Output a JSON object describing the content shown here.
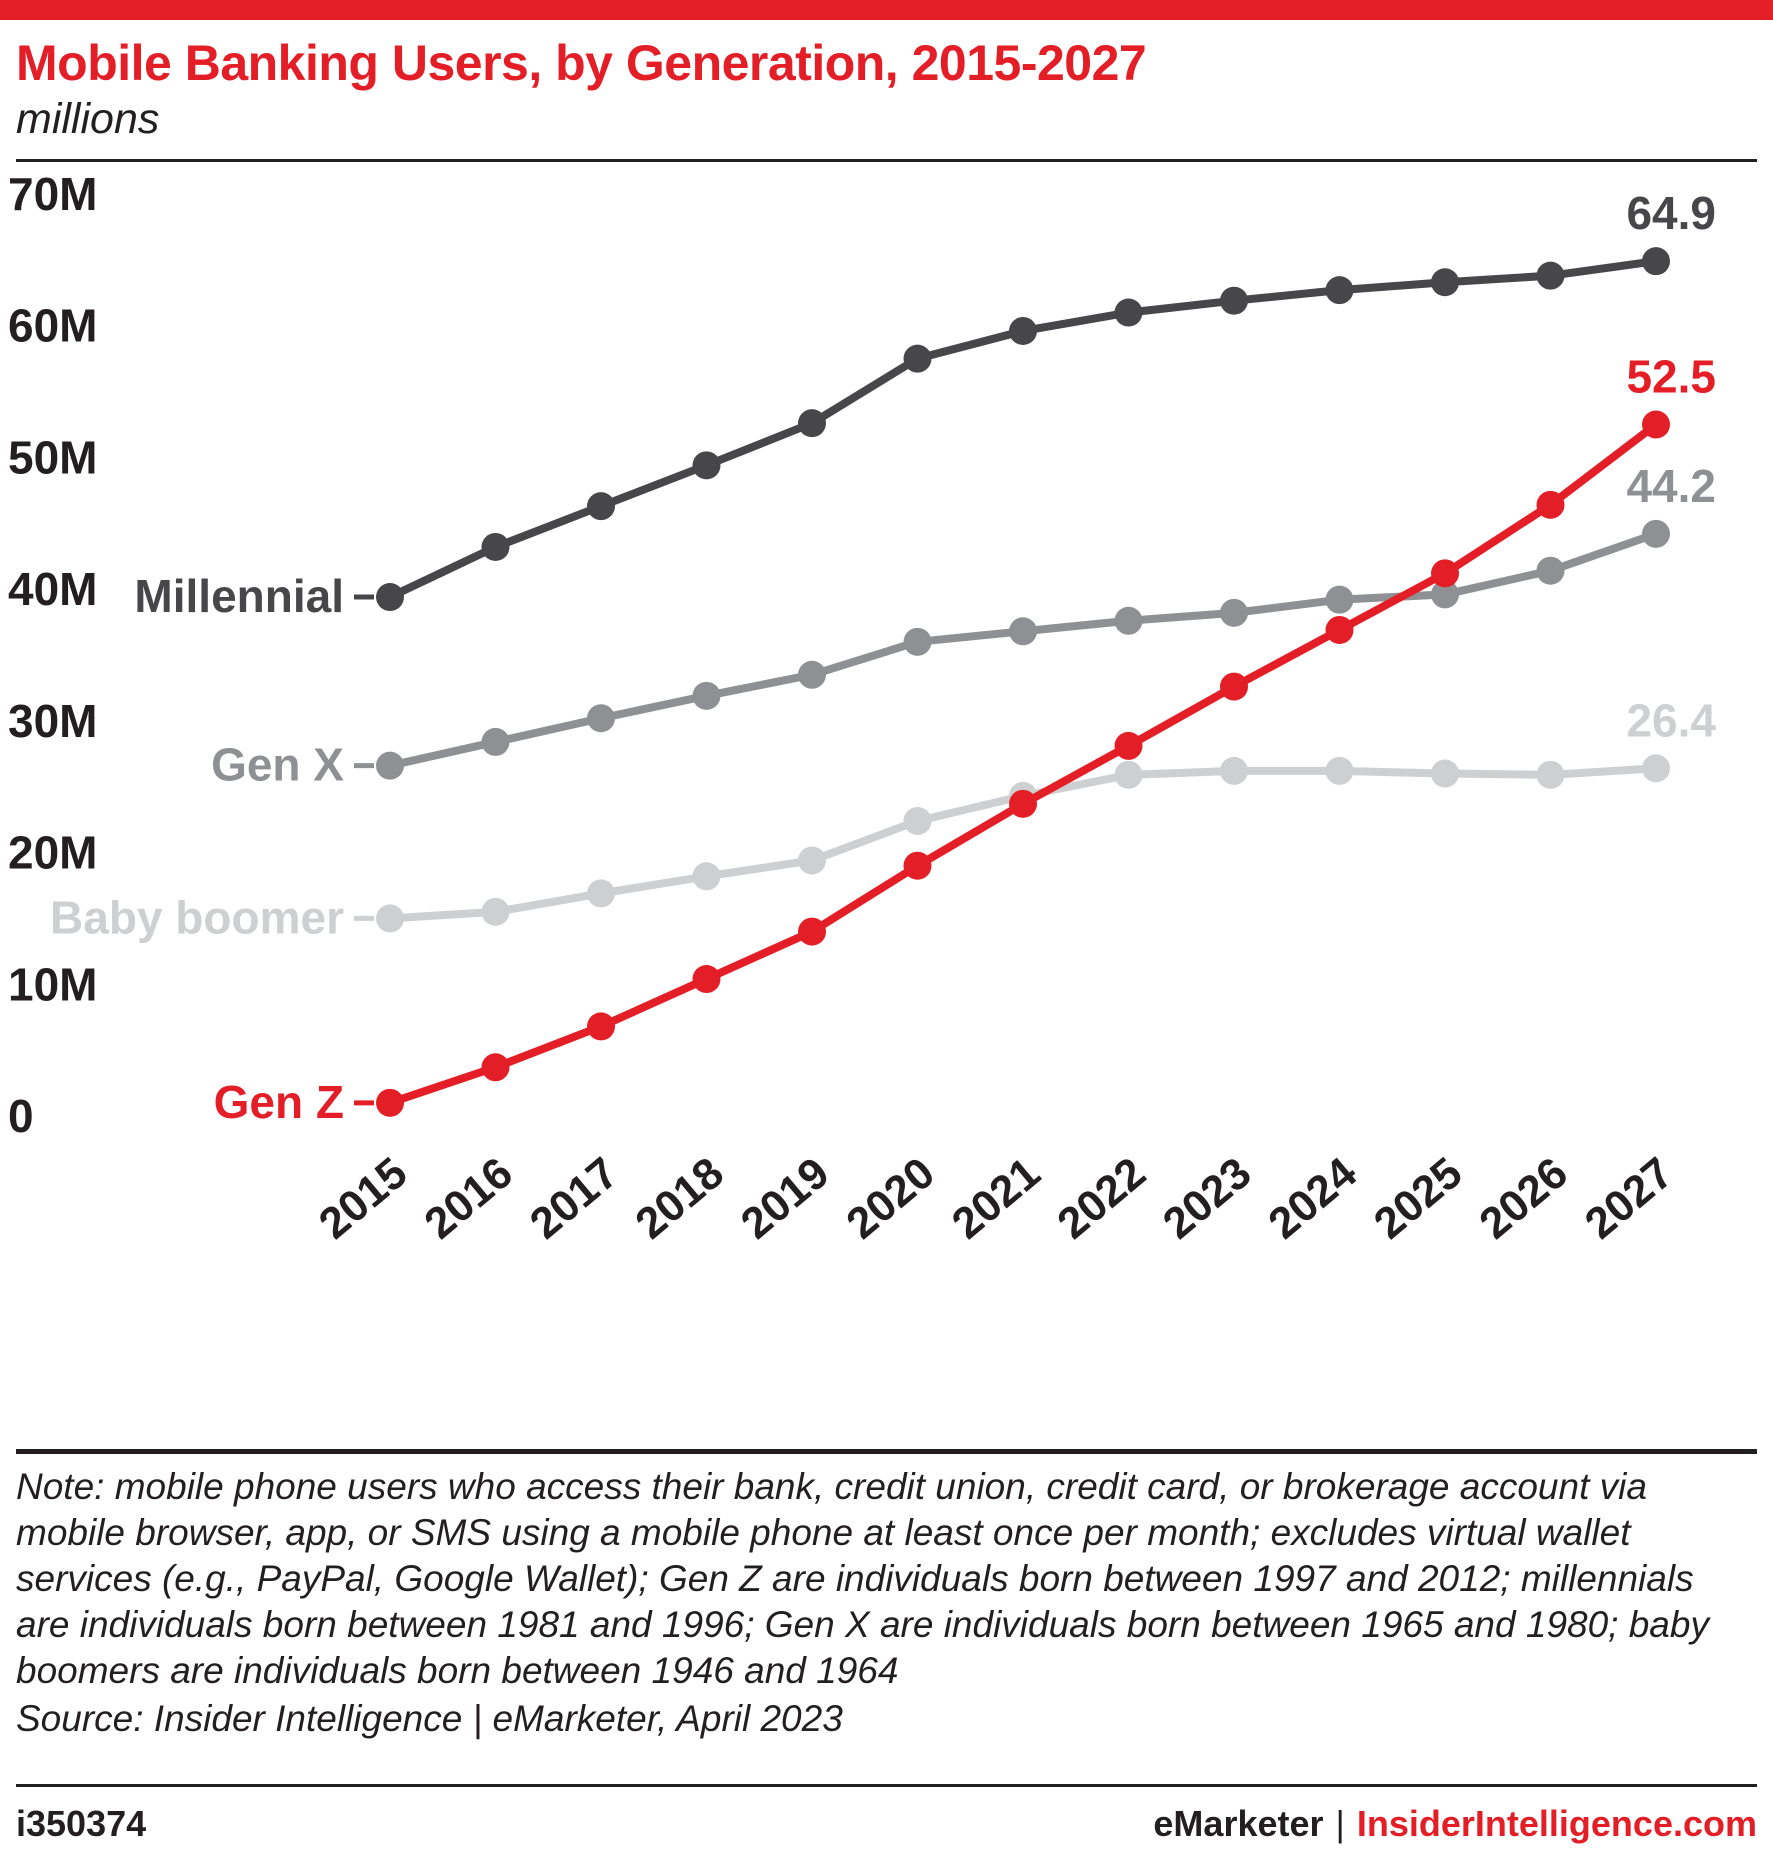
{
  "chart_data": {
    "type": "line",
    "title": "Mobile Banking Users, by Generation, 2015-2027",
    "subtitle": "millions",
    "x": [
      "2015",
      "2016",
      "2017",
      "2018",
      "2019",
      "2020",
      "2021",
      "2022",
      "2023",
      "2024",
      "2025",
      "2026",
      "2027"
    ],
    "ylim": [
      0,
      70
    ],
    "grid": false,
    "legend_position": "inline-left-of-first-point",
    "y_ticks": [
      {
        "value": 70,
        "label": "70M"
      },
      {
        "value": 60,
        "label": "60M"
      },
      {
        "value": 50,
        "label": "50M"
      },
      {
        "value": 40,
        "label": "40M"
      },
      {
        "value": 30,
        "label": "30M"
      },
      {
        "value": 20,
        "label": "20M"
      },
      {
        "value": 10,
        "label": "10M"
      },
      {
        "value": 0,
        "label": "0"
      }
    ],
    "series": [
      {
        "name": "Millennial",
        "color": "#47474a",
        "end_label": "64.9",
        "values": [
          39.4,
          43.2,
          46.3,
          49.4,
          52.6,
          57.5,
          59.6,
          61.0,
          61.9,
          62.7,
          63.3,
          63.8,
          64.9
        ]
      },
      {
        "name": "Gen X",
        "color": "#8e9093",
        "end_label": "44.2",
        "values": [
          26.6,
          28.4,
          30.2,
          31.9,
          33.5,
          36.0,
          36.8,
          37.6,
          38.2,
          39.2,
          39.6,
          41.4,
          44.2
        ]
      },
      {
        "name": "Baby boomer",
        "color": "#cdcfd0",
        "end_label": "26.4",
        "values": [
          15.0,
          15.5,
          16.9,
          18.2,
          19.4,
          22.4,
          24.3,
          25.9,
          26.2,
          26.2,
          26.0,
          25.9,
          26.4
        ]
      },
      {
        "name": "Gen Z",
        "color": "#e41e26",
        "end_label": "52.5",
        "values": [
          1.0,
          3.7,
          6.8,
          10.4,
          14.0,
          19.0,
          23.7,
          28.1,
          32.6,
          36.9,
          41.2,
          46.4,
          52.5
        ]
      }
    ]
  },
  "footnote": {
    "note": "Note: mobile phone users who access their bank, credit union, credit card, or brokerage account via mobile browser, app, or SMS using a mobile phone at least once per month; excludes virtual wallet services (e.g., PayPal, Google Wallet); Gen Z are individuals born between 1997 and 2012; millennials are individuals born between 1981 and 1996; Gen X are individuals born between 1965 and 1980; baby boomers are individuals born between 1946 and 1964",
    "source": "Source: Insider Intelligence | eMarketer, April 2023"
  },
  "footer": {
    "chart_id": "i350374",
    "brand": "eMarketer",
    "separator": "|",
    "site": "InsiderIntelligence.com"
  },
  "colors": {
    "accent_red": "#e41e26",
    "text_dark": "#231f20"
  }
}
